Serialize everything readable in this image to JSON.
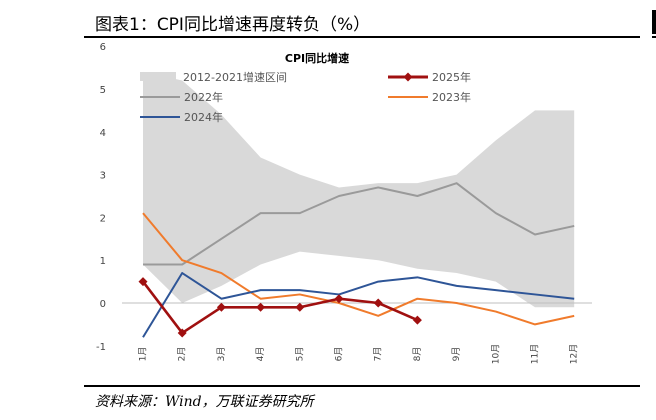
{
  "figure": {
    "title": "图表1：CPI同比增速再度转负（%）",
    "source": "资料来源：Wind，万联证券研究所"
  },
  "chart_data": {
    "type": "line",
    "title": "CPI同比增速",
    "categories": [
      "1月",
      "2月",
      "3月",
      "4月",
      "5月",
      "6月",
      "7月",
      "8月",
      "9月",
      "10月",
      "11月",
      "12月"
    ],
    "ylim": [
      -1,
      6
    ],
    "yticks": [
      -1,
      0,
      1,
      2,
      3,
      4,
      5,
      6
    ],
    "grid": false,
    "legend_position": "top",
    "band": {
      "name": "2012-2021增速区间",
      "color": "#d9d9d9",
      "upper": [
        5.4,
        5.2,
        4.4,
        3.4,
        3.0,
        2.7,
        2.8,
        2.8,
        3.0,
        3.8,
        4.5,
        4.5
      ],
      "lower": [
        0.9,
        0.0,
        0.4,
        0.9,
        1.2,
        1.1,
        1.0,
        0.8,
        0.7,
        0.5,
        -0.1,
        -0.1
      ]
    },
    "series": [
      {
        "name": "2025年",
        "color": "#a01010",
        "markers": true,
        "values": [
          0.5,
          -0.7,
          -0.1,
          -0.1,
          -0.1,
          0.1,
          0.0,
          -0.4,
          null,
          null,
          null,
          null
        ]
      },
      {
        "name": "2023年",
        "color": "#f07b2c",
        "markers": false,
        "values": [
          2.1,
          1.0,
          0.7,
          0.1,
          0.2,
          0.0,
          -0.3,
          0.1,
          0.0,
          -0.2,
          -0.5,
          -0.3
        ]
      },
      {
        "name": "2022年",
        "color": "#9a9a9a",
        "markers": false,
        "values": [
          0.9,
          0.9,
          1.5,
          2.1,
          2.1,
          2.5,
          2.7,
          2.5,
          2.8,
          2.1,
          1.6,
          1.8
        ]
      },
      {
        "name": "2024年",
        "color": "#2e5597",
        "markers": false,
        "values": [
          -0.8,
          0.7,
          0.1,
          0.3,
          0.3,
          0.2,
          0.5,
          0.6,
          0.4,
          0.3,
          0.2,
          0.1
        ]
      }
    ]
  }
}
